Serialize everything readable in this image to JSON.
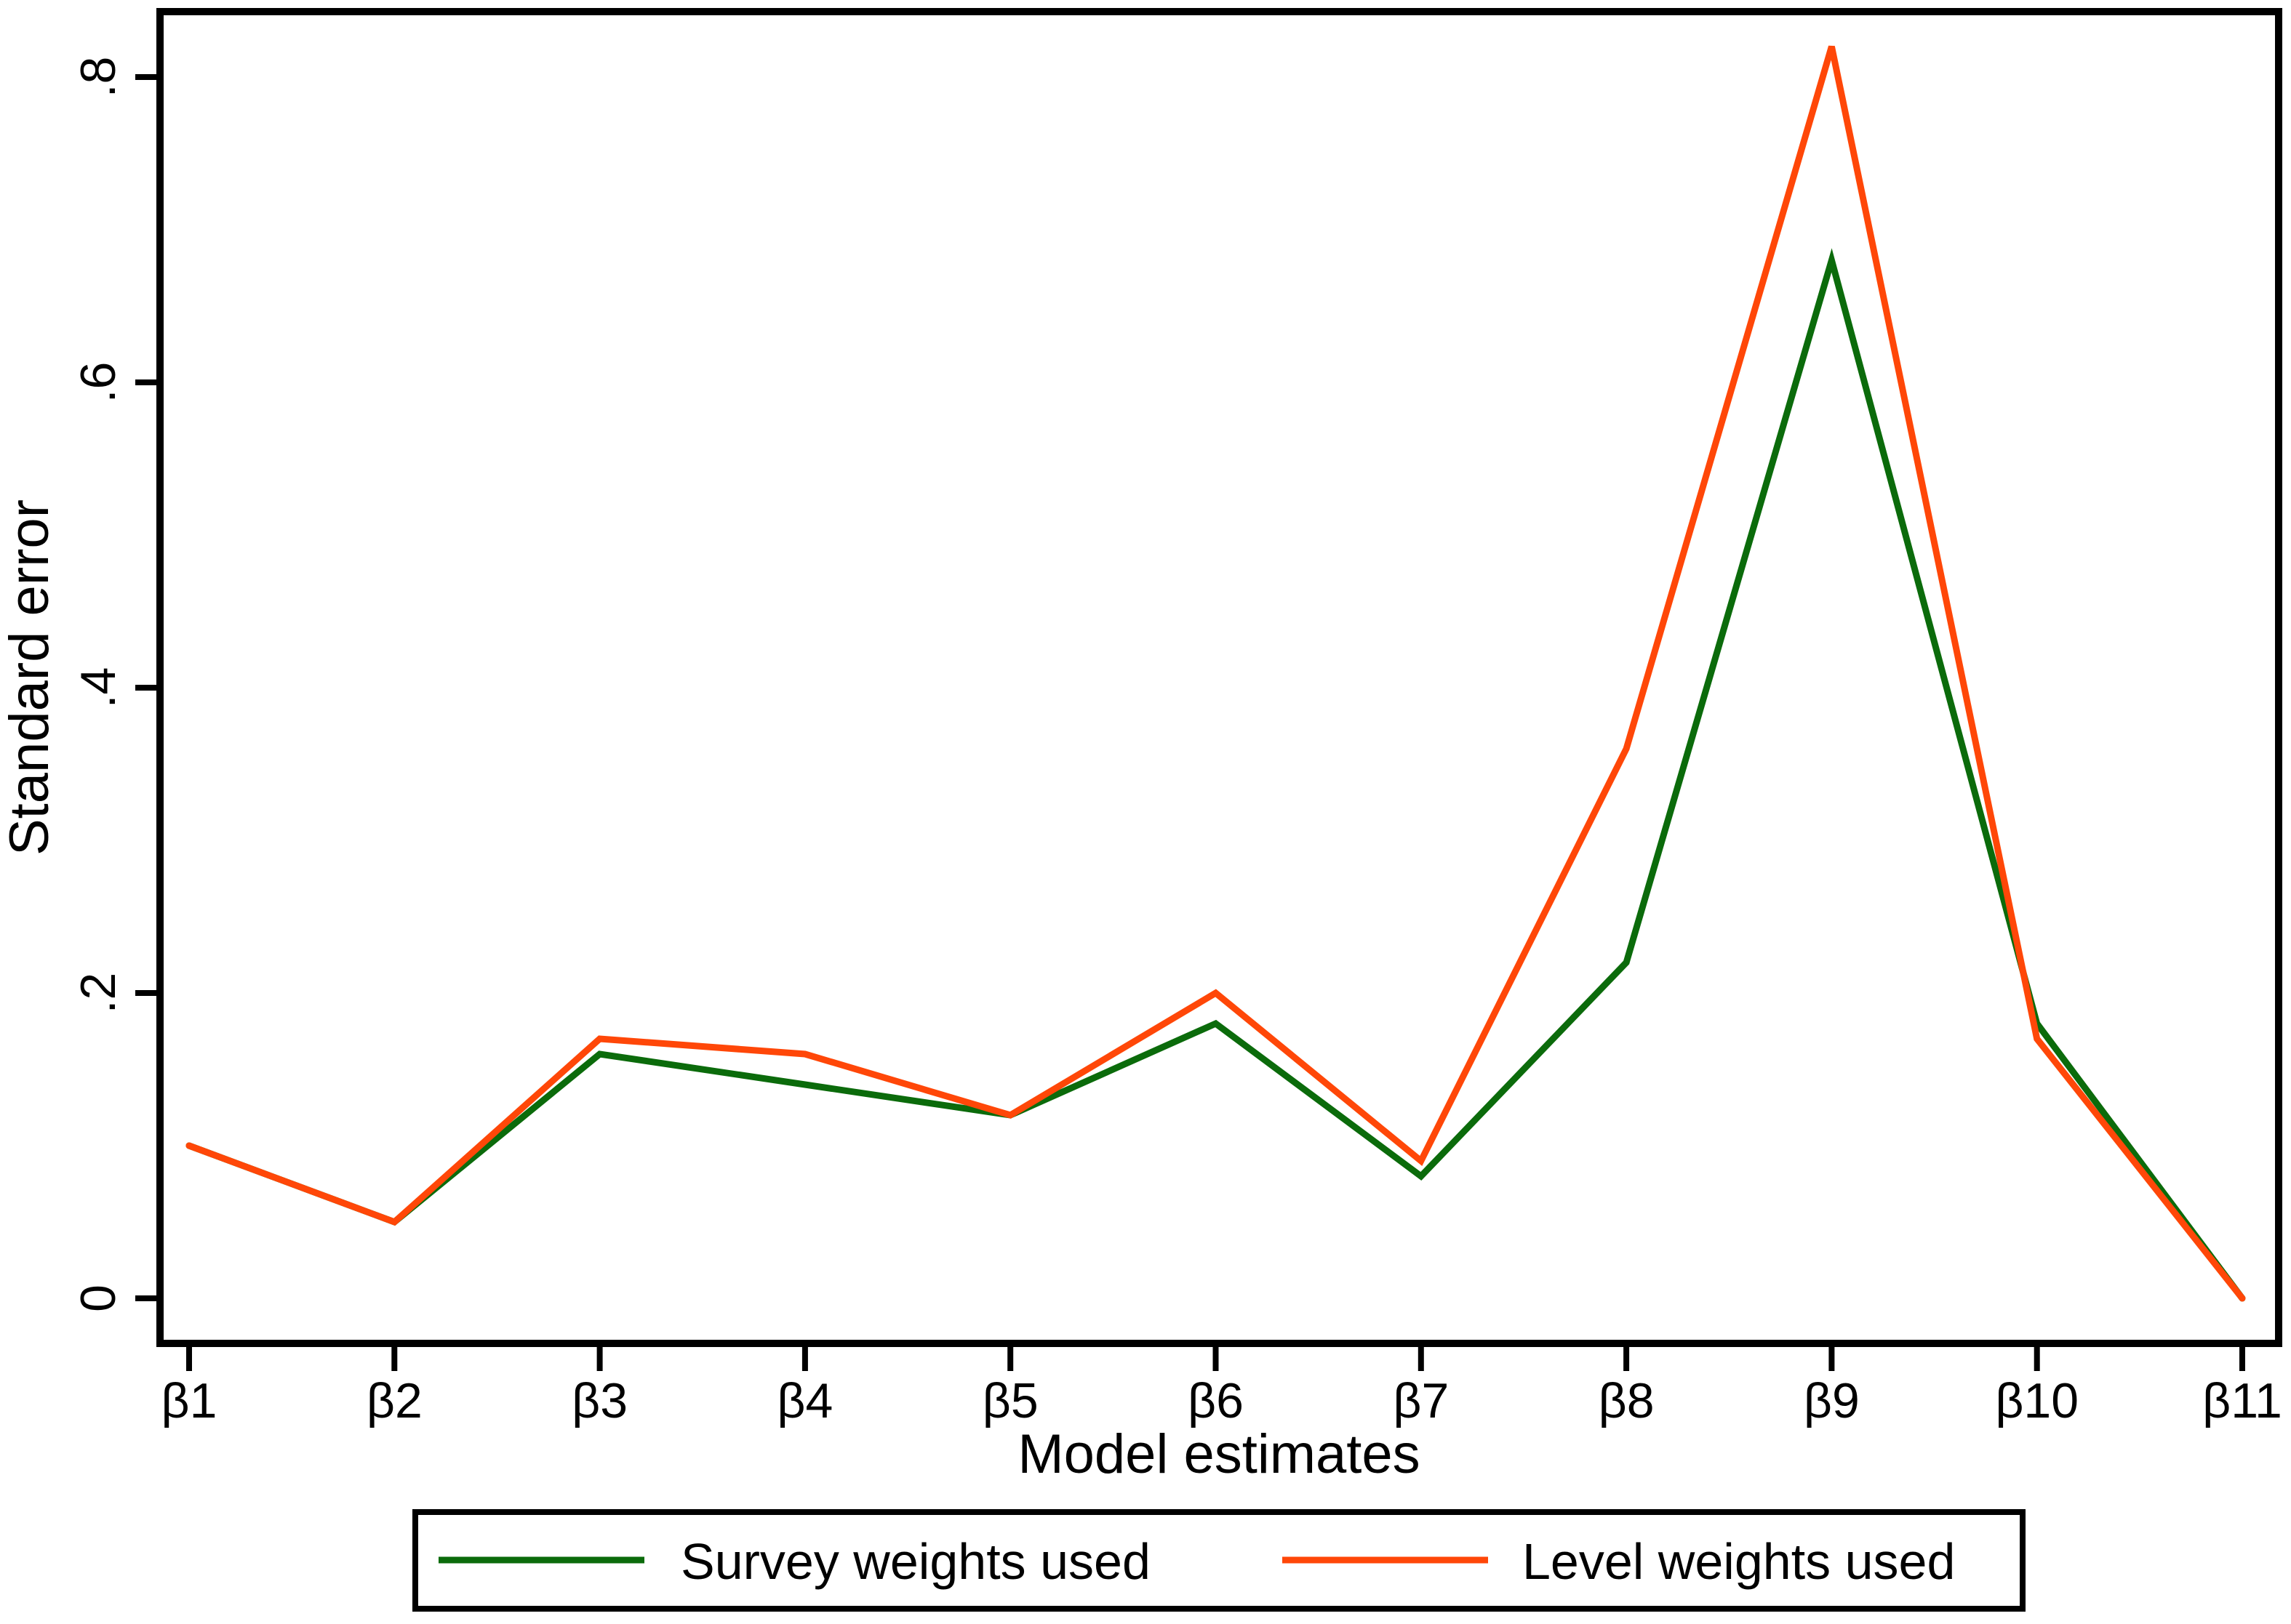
{
  "figure": {
    "background": "#ffffff",
    "axis_color": "#000000"
  },
  "chart_data": {
    "type": "line",
    "title": "",
    "xlabel": "Model estimates",
    "ylabel": "Standard error",
    "categories": [
      "β1",
      "β2",
      "β3",
      "β4",
      "β5",
      "β6",
      "β7",
      "β8",
      "β9",
      "β10",
      "β11"
    ],
    "series": [
      {
        "name": "Survey weights used",
        "color": "#0b6b0b",
        "values": [
          0.1,
          0.05,
          0.16,
          0.14,
          0.12,
          0.18,
          0.08,
          0.22,
          0.68,
          0.18,
          0.0
        ]
      },
      {
        "name": "Level weights used",
        "color": "#ff4708",
        "values": [
          0.1,
          0.05,
          0.17,
          0.16,
          0.12,
          0.2,
          0.09,
          0.36,
          0.82,
          0.17,
          0.0
        ]
      }
    ],
    "y_ticks": [
      {
        "v": 0.0,
        "label": "0"
      },
      {
        "v": 0.2,
        "label": ".2"
      },
      {
        "v": 0.4,
        "label": ".4"
      },
      {
        "v": 0.6,
        "label": ".6"
      },
      {
        "v": 0.8,
        "label": ".8"
      }
    ],
    "ylim": [
      -0.03,
      0.845
    ],
    "grid": false,
    "legend_position": "bottom-outside",
    "legend_border": true
  }
}
